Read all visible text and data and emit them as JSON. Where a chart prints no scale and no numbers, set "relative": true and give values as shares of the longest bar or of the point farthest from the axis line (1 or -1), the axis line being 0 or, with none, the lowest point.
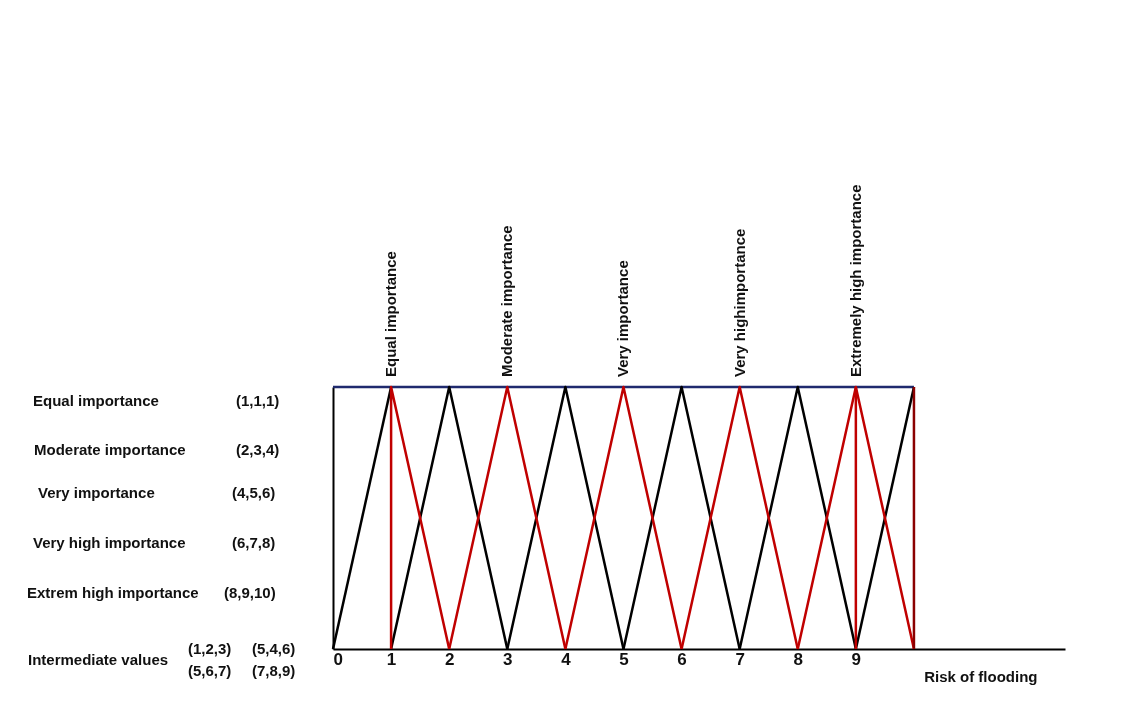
{
  "chart_data": {
    "type": "line",
    "relative": true,
    "xlabel": "Risk of flooding",
    "xlim": [
      0,
      12.6
    ],
    "xticks": [
      0,
      1,
      2,
      3,
      4,
      5,
      6,
      7,
      8,
      9
    ],
    "series": [
      {
        "color": "#1f2a6e",
        "x": [
          0,
          10
        ],
        "values": [
          1,
          1
        ]
      },
      {
        "color": "#000000",
        "x": [
          0,
          1
        ],
        "values": [
          0,
          1
        ]
      },
      {
        "color": "#000000",
        "x": [
          1,
          2,
          3
        ],
        "values": [
          0,
          1,
          0
        ]
      },
      {
        "color": "#000000",
        "x": [
          3,
          4,
          5
        ],
        "values": [
          0,
          1,
          0
        ]
      },
      {
        "color": "#000000",
        "x": [
          5,
          6,
          7
        ],
        "values": [
          0,
          1,
          0
        ]
      },
      {
        "color": "#000000",
        "x": [
          7,
          8,
          9
        ],
        "values": [
          0,
          1,
          0
        ]
      },
      {
        "color": "#000000",
        "x": [
          9,
          10
        ],
        "values": [
          0,
          1
        ]
      },
      {
        "color": "#c00000",
        "x": [
          1,
          1,
          2
        ],
        "values": [
          0,
          1,
          0
        ]
      },
      {
        "color": "#c00000",
        "x": [
          2,
          3,
          4
        ],
        "values": [
          0,
          1,
          0
        ]
      },
      {
        "color": "#c00000",
        "x": [
          4,
          5,
          6
        ],
        "values": [
          0,
          1,
          0
        ]
      },
      {
        "color": "#c00000",
        "x": [
          6,
          7,
          8
        ],
        "values": [
          0,
          1,
          0
        ]
      },
      {
        "color": "#c00000",
        "x": [
          8,
          9,
          10
        ],
        "values": [
          0,
          1,
          0
        ]
      },
      {
        "color": "#c00000",
        "x": [
          9,
          9
        ],
        "values": [
          0,
          1
        ]
      },
      {
        "color": "#8b0000",
        "x": [
          10,
          10
        ],
        "values": [
          0,
          1
        ]
      }
    ],
    "annotations": [
      {
        "text": "Equal importance",
        "x": 1,
        "y": 1
      },
      {
        "text": "Moderate importance",
        "x": 3,
        "y": 1
      },
      {
        "text": "Very importance",
        "x": 5,
        "y": 1
      },
      {
        "text": "Very highimportance",
        "x": 7,
        "y": 1
      },
      {
        "text": "Extremely high importance",
        "x": 9,
        "y": 1
      },
      "Equal importance",
      "(1,1,1)",
      "Moderate importance",
      "(2,3,4)",
      "Very importance",
      "(4,5,6)",
      "Very high importance",
      "(6,7,8)",
      "Extrem high importance",
      "(8,9,10)",
      "Intermediate values",
      "(1,2,3)",
      "(5,4,6)",
      "(5,6,7)",
      "(7,8,9)"
    ]
  }
}
